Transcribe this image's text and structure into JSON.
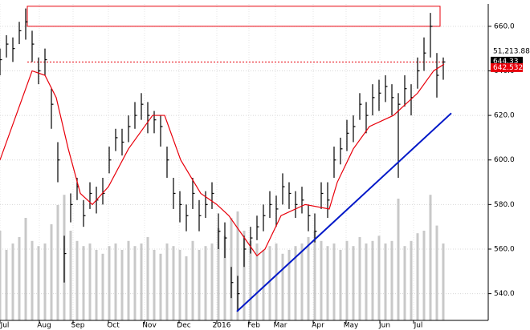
{
  "chart_data": {
    "type": "ohlc",
    "x": [
      0,
      4,
      8,
      12,
      16,
      20,
      24,
      28,
      32,
      36,
      40,
      44,
      48,
      52,
      56,
      60,
      64,
      68,
      72,
      76,
      80,
      84,
      88,
      92,
      96,
      100,
      104,
      108,
      112,
      116,
      120,
      124,
      128,
      132,
      136,
      140,
      144,
      148,
      152,
      156,
      160,
      164,
      168,
      172,
      176,
      180,
      184,
      188,
      192,
      196,
      200,
      204,
      208,
      212,
      216,
      220,
      224,
      228,
      232,
      236,
      240,
      244,
      248,
      252,
      256,
      260,
      264,
      268,
      272,
      276
    ],
    "high": [
      650,
      656,
      655,
      662,
      668,
      658,
      646,
      650,
      632,
      608,
      566,
      585,
      592,
      582,
      590,
      588,
      592,
      606,
      614,
      614,
      620,
      626,
      630,
      626,
      622,
      620,
      606,
      592,
      586,
      580,
      592,
      582,
      586,
      590,
      576,
      572,
      552,
      548,
      566,
      570,
      575,
      580,
      586,
      584,
      594,
      590,
      586,
      588,
      580,
      576,
      590,
      590,
      606,
      610,
      618,
      620,
      630,
      626,
      634,
      636,
      638,
      634,
      630,
      638,
      634,
      646,
      655,
      666,
      648,
      646
    ],
    "low": [
      638,
      646,
      644,
      652,
      654,
      644,
      634,
      638,
      614,
      590,
      545,
      572,
      582,
      570,
      578,
      576,
      580,
      594,
      604,
      602,
      608,
      614,
      618,
      612,
      612,
      606,
      592,
      578,
      572,
      568,
      578,
      568,
      574,
      578,
      560,
      556,
      538,
      532,
      552,
      558,
      564,
      568,
      574,
      570,
      580,
      578,
      574,
      576,
      568,
      563,
      578,
      574,
      592,
      598,
      604,
      608,
      618,
      612,
      620,
      622,
      626,
      620,
      592,
      624,
      620,
      632,
      640,
      646,
      628,
      636
    ],
    "close": [
      645,
      652,
      650,
      658,
      662,
      652,
      640,
      645,
      625,
      600,
      558,
      580,
      588,
      575,
      585,
      582,
      585,
      600,
      610,
      608,
      615,
      620,
      625,
      620,
      618,
      615,
      600,
      585,
      580,
      575,
      585,
      575,
      580,
      585,
      568,
      565,
      545,
      540,
      560,
      565,
      570,
      575,
      580,
      578,
      588,
      585,
      580,
      582,
      575,
      568,
      585,
      582,
      600,
      605,
      612,
      615,
      625,
      620,
      628,
      630,
      633,
      628,
      625,
      632,
      628,
      640,
      648,
      660,
      638,
      644
    ],
    "color": "#000000",
    "volume": [
      70,
      55,
      60,
      65,
      80,
      62,
      58,
      60,
      75,
      90,
      98,
      70,
      62,
      58,
      60,
      55,
      52,
      58,
      60,
      55,
      62,
      58,
      60,
      65,
      55,
      52,
      60,
      58,
      55,
      50,
      62,
      55,
      58,
      60,
      72,
      66,
      80,
      85,
      70,
      62,
      60,
      55,
      58,
      60,
      52,
      55,
      58,
      60,
      65,
      70,
      62,
      58,
      60,
      55,
      62,
      58,
      65,
      60,
      62,
      66,
      60,
      62,
      95,
      58,
      62,
      68,
      70,
      98,
      74,
      60
    ],
    "volume_color": "#c8c8c8",
    "ma": {
      "color": "#e8000b",
      "x": [
        0,
        20,
        28,
        35,
        42.5,
        50,
        57.5,
        67.5,
        80,
        95,
        102.5,
        112.5,
        125,
        135,
        142.5,
        160,
        165,
        175,
        190,
        205,
        210,
        220,
        230,
        245,
        260,
        270,
        276.5
      ],
      "values": [
        600,
        640,
        638,
        628,
        605,
        585,
        580,
        588,
        605,
        620,
        620,
        600,
        585,
        580,
        575,
        557,
        560,
        575,
        580,
        578,
        590,
        605,
        615,
        620,
        630,
        640,
        643
      ]
    },
    "trendline": {
      "color": "#0018c8",
      "x": [
        147.5,
        281
      ],
      "y": [
        532,
        621
      ]
    },
    "zone": {
      "color": "#e8000b",
      "x": [
        17,
        274
      ],
      "y": [
        660,
        669
      ]
    },
    "level": {
      "color": "#e8000b",
      "value": 644,
      "x": [
        17,
        276
      ]
    },
    "price_labels": [
      {
        "label": "51,213.88",
        "value": 647.8
      },
      {
        "label": "644.33",
        "value": 644.33
      },
      {
        "label": "642.532",
        "value": 642.532
      }
    ],
    "xlim": [
      0,
      304
    ],
    "ylim": [
      528,
      670
    ],
    "yticks": [
      {
        "value": 540,
        "label": "540.0"
      },
      {
        "value": 560,
        "label": "560.0"
      },
      {
        "value": 580,
        "label": "580.0"
      },
      {
        "value": 600,
        "label": "600.0"
      },
      {
        "value": 620,
        "label": "620.0"
      },
      {
        "value": 640,
        "label": "640.0"
      },
      {
        "value": 660,
        "label": "660.0"
      }
    ],
    "xticks": [
      {
        "value": 3,
        "label": "Jul"
      },
      {
        "value": 27.5,
        "label": "Aug"
      },
      {
        "value": 48.5,
        "label": "Sep"
      },
      {
        "value": 70.5,
        "label": "Oct"
      },
      {
        "value": 93,
        "label": "Nov"
      },
      {
        "value": 114.5,
        "label": "Dec"
      },
      {
        "value": 138,
        "label": "2016"
      },
      {
        "value": 158,
        "label": "Feb"
      },
      {
        "value": 174.5,
        "label": "Mar"
      },
      {
        "value": 198,
        "label": "Apr"
      },
      {
        "value": 218.5,
        "label": "May"
      },
      {
        "value": 239.5,
        "label": "Jun"
      },
      {
        "value": 260.5,
        "label": "Jul"
      }
    ],
    "grid": true
  }
}
